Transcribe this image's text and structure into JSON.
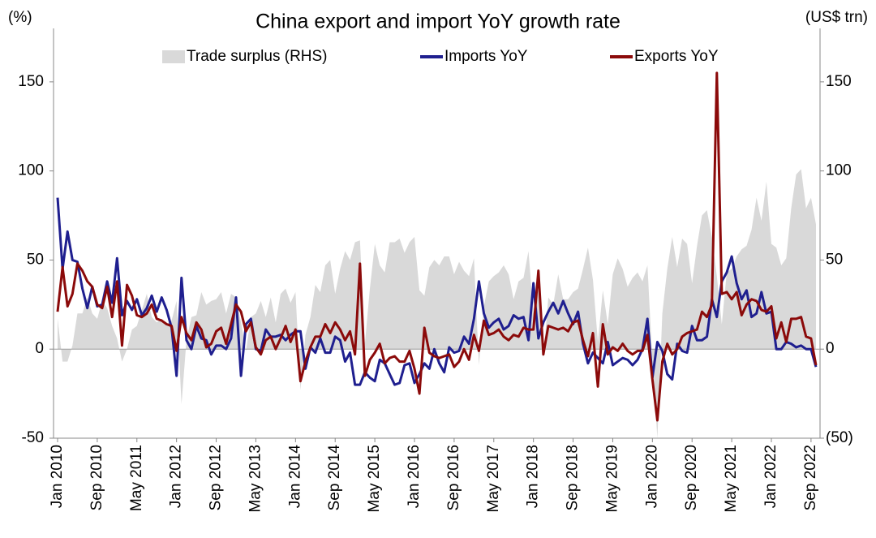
{
  "chart_data": {
    "type": "line",
    "title": "China export and import YoY growth rate",
    "y_label": "(%)",
    "y2_label": "(US$ trn)",
    "ylim": [
      -50,
      180
    ],
    "yticks": [
      -50,
      0,
      50,
      100,
      150
    ],
    "y2lim": [
      -50,
      180
    ],
    "y2ticks": [
      {
        "value": -50,
        "label": "(50)"
      },
      0,
      50,
      100,
      150
    ],
    "categories": [
      "Jan 2010",
      null,
      null,
      null,
      null,
      null,
      null,
      null,
      "Sep 2010",
      null,
      null,
      null,
      null,
      null,
      null,
      null,
      "May 2011",
      null,
      null,
      null,
      null,
      null,
      null,
      null,
      "Jan 2012",
      null,
      null,
      null,
      null,
      null,
      null,
      null,
      "Sep 2012",
      null,
      null,
      null,
      null,
      null,
      null,
      null,
      "May 2013",
      null,
      null,
      null,
      null,
      null,
      null,
      null,
      "Jan 2014",
      null,
      null,
      null,
      null,
      null,
      null,
      null,
      "Sep 2014",
      null,
      null,
      null,
      null,
      null,
      null,
      null,
      "May 2015",
      null,
      null,
      null,
      null,
      null,
      null,
      null,
      "Jan 2016",
      null,
      null,
      null,
      null,
      null,
      null,
      null,
      "Sep 2016",
      null,
      null,
      null,
      null,
      null,
      null,
      null,
      "May 2017",
      null,
      null,
      null,
      null,
      null,
      null,
      null,
      "Jan 2018",
      null,
      null,
      null,
      null,
      null,
      null,
      null,
      "Sep 2018",
      null,
      null,
      null,
      null,
      null,
      null,
      null,
      "May 2019",
      null,
      null,
      null,
      null,
      null,
      null,
      null,
      "Jan 2020",
      null,
      null,
      null,
      null,
      null,
      null,
      null,
      "Sep 2020",
      null,
      null,
      null,
      null,
      null,
      null,
      null,
      "May 2021",
      null,
      null,
      null,
      null,
      null,
      null,
      null,
      "Jan 2022",
      null,
      null,
      null,
      null,
      null,
      null,
      null,
      "Sep 2022",
      null
    ],
    "series": [
      {
        "name": "Trade surplus (RHS)",
        "kind": "area",
        "axis": "y2",
        "color": "#d9d9d9",
        "values": [
          17,
          -7,
          -7,
          2,
          20,
          20,
          29,
          20,
          17,
          27,
          23,
          13,
          6,
          -7,
          0,
          11,
          13,
          22,
          31,
          18,
          15,
          17,
          14,
          16,
          27,
          -31,
          5,
          18,
          19,
          32,
          25,
          27,
          28,
          32,
          20,
          31,
          29,
          15,
          -1,
          18,
          20,
          27,
          18,
          29,
          15,
          31,
          34,
          26,
          32,
          -23,
          8,
          18,
          36,
          32,
          47,
          50,
          31,
          45,
          55,
          50,
          60,
          61,
          3,
          34,
          59,
          47,
          43,
          60,
          60,
          62,
          54,
          60,
          63,
          33,
          30,
          46,
          50,
          47,
          52,
          52,
          42,
          49,
          44,
          41,
          51,
          -9,
          24,
          38,
          41,
          43,
          47,
          42,
          28,
          38,
          40,
          55,
          20,
          34,
          -5,
          29,
          25,
          42,
          28,
          28,
          32,
          34,
          45,
          57,
          39,
          4,
          33,
          14,
          42,
          51,
          45,
          35,
          40,
          43,
          38,
          47,
          -7,
          -50,
          20,
          45,
          63,
          46,
          62,
          59,
          37,
          58,
          75,
          78,
          63,
          41,
          14,
          43,
          45,
          52,
          56,
          58,
          67,
          85,
          72,
          94,
          59,
          57,
          47,
          51,
          79,
          98,
          101,
          79,
          85,
          70
        ]
      },
      {
        "name": "Imports YoY",
        "kind": "line",
        "color": "#1f1f8f",
        "values": [
          85,
          45,
          66,
          50,
          49,
          34,
          23,
          35,
          24,
          25,
          38,
          26,
          51,
          19,
          27,
          22,
          28,
          19,
          23,
          30,
          21,
          29,
          22,
          12,
          -15,
          40,
          5,
          0,
          13,
          6,
          5,
          -3,
          2,
          2,
          0,
          6,
          29,
          -15,
          14,
          17,
          0,
          -1,
          11,
          7,
          7,
          8,
          5,
          8,
          10,
          10,
          -11,
          1,
          -2,
          6,
          -2,
          -2,
          7,
          5,
          -7,
          -2,
          -20,
          -20,
          -13,
          -16,
          -18,
          -6,
          -8,
          -14,
          -20,
          -19,
          -9,
          -8,
          -19,
          -14,
          -8,
          -11,
          0,
          -8,
          -13,
          1,
          -2,
          -1,
          7,
          3,
          17,
          38,
          20,
          12,
          15,
          17,
          11,
          13,
          19,
          17,
          18,
          5,
          37,
          6,
          15,
          21,
          26,
          20,
          27,
          20,
          14,
          21,
          3,
          -8,
          -2,
          -5,
          -8,
          4,
          -9,
          -7,
          -5,
          -6,
          -9,
          -6,
          0,
          17,
          -16,
          4,
          -1,
          -14,
          -17,
          3,
          -1,
          -2,
          13,
          5,
          5,
          7,
          28,
          18,
          38,
          43,
          52,
          37,
          28,
          33,
          18,
          20,
          32,
          20,
          21,
          0,
          0,
          4,
          3,
          1,
          2,
          0,
          0,
          -10
        ]
      },
      {
        "name": "Exports YoY",
        "kind": "line",
        "color": "#8b0a0a",
        "values": [
          21,
          46,
          24,
          31,
          48,
          44,
          38,
          35,
          25,
          23,
          35,
          18,
          38,
          2,
          36,
          30,
          19,
          18,
          20,
          25,
          17,
          16,
          14,
          13,
          -1,
          18,
          9,
          5,
          15,
          11,
          1,
          3,
          10,
          12,
          3,
          14,
          25,
          21,
          10,
          15,
          1,
          -3,
          5,
          7,
          0,
          6,
          13,
          4,
          11,
          -18,
          -7,
          1,
          7,
          7,
          14,
          9,
          15,
          11,
          5,
          10,
          -3,
          48,
          -15,
          -6,
          -2,
          3,
          -8,
          -5,
          -4,
          -7,
          -7,
          -1,
          -11,
          -25,
          12,
          -2,
          -4,
          -5,
          -4,
          -3,
          -10,
          -7,
          0,
          -6,
          8,
          -1,
          16,
          8,
          9,
          11,
          7,
          5,
          8,
          7,
          12,
          11,
          11,
          44,
          -3,
          13,
          12,
          11,
          12,
          10,
          15,
          16,
          5,
          -4,
          9,
          -21,
          14,
          -3,
          1,
          -1,
          3,
          -1,
          -3,
          -1,
          -1,
          8,
          -17,
          -40,
          -7,
          3,
          -3,
          0,
          7,
          9,
          10,
          11,
          21,
          18,
          25,
          155,
          31,
          32,
          28,
          32,
          19,
          25,
          28,
          27,
          22,
          21,
          24,
          6,
          15,
          4,
          17,
          17,
          18,
          7,
          6,
          -9
        ]
      }
    ]
  }
}
